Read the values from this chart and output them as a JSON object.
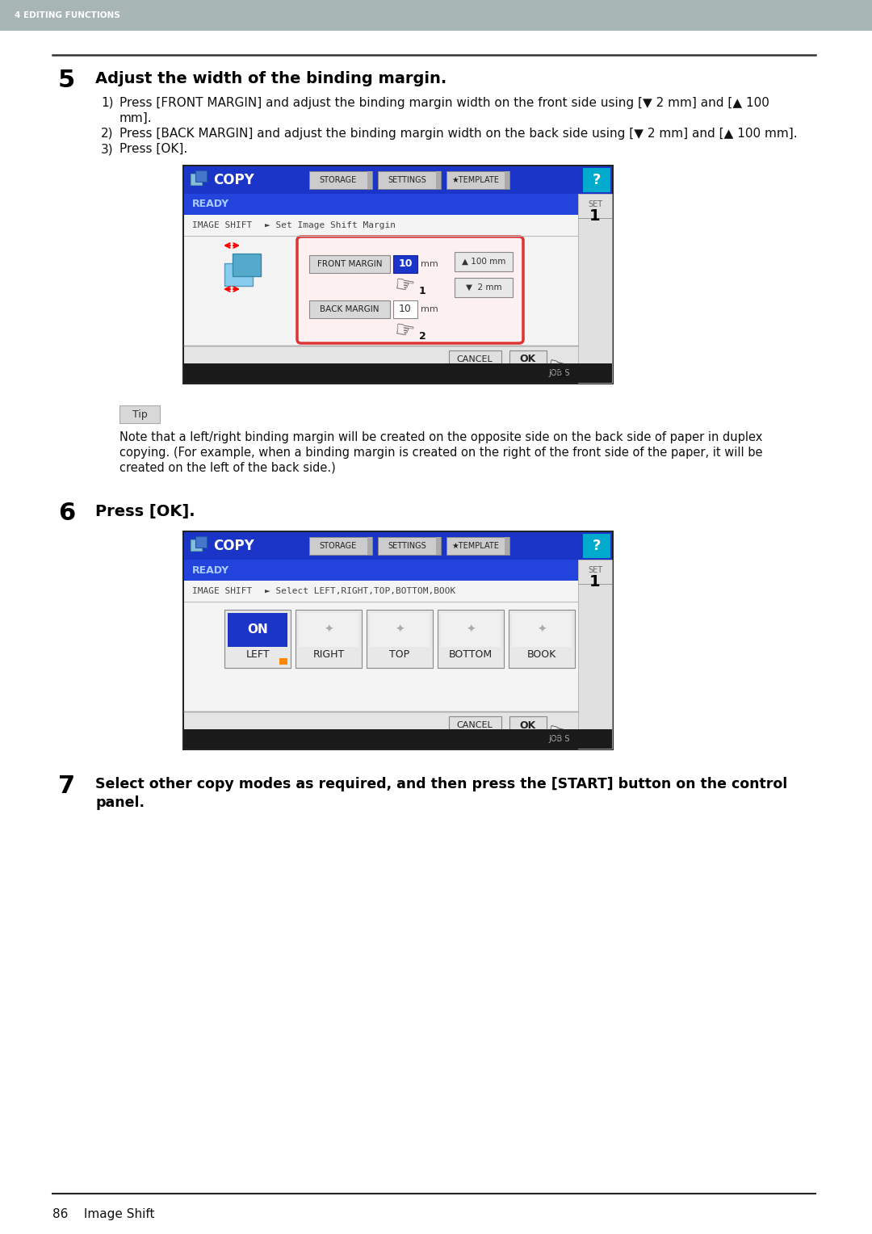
{
  "header_bg_color": "#a8b5b5",
  "header_text": "4 EDITING FUNCTIONS",
  "header_text_color": "#ffffff",
  "bg_color": "#ffffff",
  "footer_text": "86    Image Shift",
  "step5_number": "5",
  "step5_title": "Adjust the width of the binding margin.",
  "step5_body": [
    [
      "1)",
      "Press [FRONT MARGIN] and adjust the binding margin width on the front side using [▼ 2 mm] and [▲ 100"
    ],
    [
      "",
      "mm]."
    ],
    [
      "2)",
      "Press [BACK MARGIN] and adjust the binding margin width on the back side using [▼ 2 mm] and [▲ 100 mm]."
    ],
    [
      "3)",
      "Press [OK]."
    ]
  ],
  "step6_number": "6",
  "step6_title": "Press [OK].",
  "step7_number": "7",
  "step7_title_line1": "Select other copy modes as required, and then press the [START] button on the control",
  "step7_title_line2": "panel.",
  "tip_text": "Tip",
  "tip_note_lines": [
    "Note that a left/right binding margin will be created on the opposite side on the back side of paper in duplex",
    "copying. (For example, when a binding margin is created on the right of the front side of the paper, it will be",
    "created on the left of the back side.)"
  ],
  "copy_bar_blue": "#1a35c8",
  "ready_bar_blue": "#2244dd",
  "btn_gray": "#d8d8d8",
  "btn_border": "#999999",
  "blue_val": "#1a35c8",
  "cyan_q": "#00aacc",
  "job_black": "#1a1a1a",
  "red_box": "#dd3333",
  "scr1_btns": [
    "STORAGE",
    "SETTINGS",
    "★TEMPLATE"
  ],
  "scr2_btns": [
    "STORAGE",
    "SETTINGS",
    "★TEMPLATE"
  ],
  "mode_labels": [
    "LEFT",
    "RIGHT",
    "TOP",
    "BOTTOM",
    "BOOK"
  ]
}
